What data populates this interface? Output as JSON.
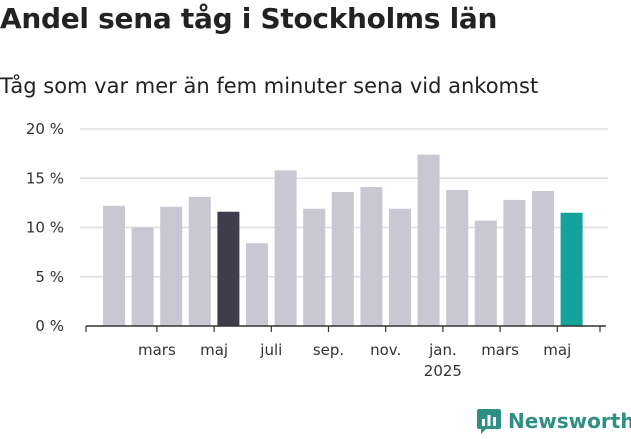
{
  "title": "Andel sena tåg i Stockholms län",
  "subtitle": "Tåg som var mer än fem minuter sena vid ankomst",
  "brand": {
    "name": "Newsworthy",
    "logo_icon": "bar-chart-logo-icon"
  },
  "colors": {
    "default": "#c8c7d2",
    "highlight_previous": "#3f3d4a",
    "highlight_current": "#14a39a",
    "grid": "#dddddd",
    "axis": "#333333"
  },
  "chart_data": {
    "type": "bar",
    "title": "Andel sena tåg i Stockholms län",
    "subtitle": "Tåg som var mer än fem minuter sena vid ankomst",
    "ylim": [
      0,
      20
    ],
    "yticks": [
      "0 %",
      "5 %",
      "10 %",
      "15 %",
      "20 %"
    ],
    "ytick_values": [
      0,
      5,
      10,
      15,
      20
    ],
    "grid": true,
    "values": [
      12.2,
      10.0,
      12.1,
      13.1,
      11.6,
      8.4,
      15.8,
      11.9,
      13.6,
      14.1,
      11.9,
      17.4,
      13.8,
      10.7,
      12.8,
      13.7,
      11.5
    ],
    "highlight": {
      "4": "highlight_previous",
      "16": "highlight_current"
    },
    "xticks": [
      {
        "label": "mars",
        "after": 1
      },
      {
        "label": "maj",
        "after": 3
      },
      {
        "label": "juli",
        "after": 5
      },
      {
        "label": "sep.",
        "after": 7
      },
      {
        "label": "nov.",
        "after": 9
      },
      {
        "label": "jan.",
        "sub": "2025",
        "after": 11
      },
      {
        "label": "mars",
        "after": 13
      },
      {
        "label": "maj",
        "after": 15
      }
    ]
  }
}
